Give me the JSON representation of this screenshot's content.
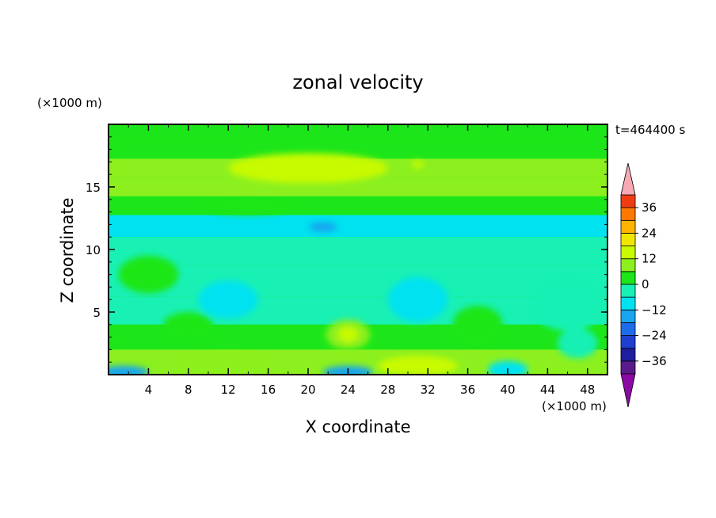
{
  "chart_data": {
    "type": "heatmap",
    "title": "zonal velocity",
    "xlabel": "X coordinate",
    "ylabel": "Z coordinate",
    "x_unit": "(×1000 m)",
    "y_unit": "(×1000 m)",
    "time_label": "t=464400 s",
    "xlim": [
      0,
      50
    ],
    "ylim": [
      0,
      20
    ],
    "x_ticks": [
      4,
      8,
      12,
      16,
      20,
      24,
      28,
      32,
      36,
      40,
      44,
      48
    ],
    "y_ticks": [
      5,
      10,
      15
    ],
    "colorbar": {
      "levels": [
        -42,
        -36,
        -30,
        -24,
        -18,
        -12,
        -6,
        0,
        6,
        12,
        18,
        24,
        30,
        36,
        42
      ],
      "tick_values": [
        -36,
        -24,
        -12,
        0,
        12,
        24,
        36
      ],
      "tick_labels": [
        "−36",
        "−24",
        "−12",
        "0",
        "12",
        "24",
        "36"
      ],
      "colors": [
        "#8B0AA5",
        "#5A1A8C",
        "#1E1E9E",
        "#1F3FD0",
        "#1E6CEB",
        "#19A5F0",
        "#00E2F0",
        "#19F0B4",
        "#1CE619",
        "#8CF01E",
        "#C8FA00",
        "#F0E600",
        "#FFB400",
        "#FF7800",
        "#F03C14",
        "#E60F0F",
        "#F7AAB4"
      ],
      "under_color": "#8B0AA5",
      "over_color": "#F7AAB4"
    },
    "field_approx": [
      {
        "z": 19.5,
        "u": 2
      },
      {
        "z": 18.0,
        "u": 4
      },
      {
        "z": 16.5,
        "u": 9
      },
      {
        "z": 15.0,
        "u": 7
      },
      {
        "z": 13.5,
        "u": 3
      },
      {
        "z": 12.0,
        "u": -7
      },
      {
        "z": 10.0,
        "u": -4
      },
      {
        "z": 7.5,
        "u": -2
      },
      {
        "z": 5.0,
        "u": -6
      },
      {
        "z": 3.0,
        "u": 2
      },
      {
        "z": 1.0,
        "u": 6
      }
    ],
    "grid": false
  }
}
